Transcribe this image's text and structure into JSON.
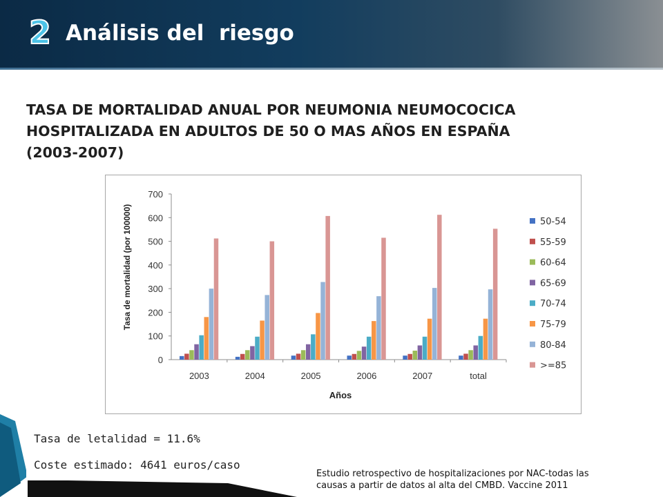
{
  "header": {
    "slide_number": "2",
    "title": "Análisis del  riesgo"
  },
  "main_title": {
    "lines": [
      "TASA DE MORTALIDAD ANUAL POR NEUMONIA NEUMOCOCICA",
      "HOSPITALIZADA EN ADULTOS DE 50 O MAS AÑOS EN ESPAÑA",
      "(2003-2007)"
    ]
  },
  "info_box": {
    "letalidad": "Tasa de letalidad = 11.6%",
    "coste": "Coste estimado: 4641 euros/caso"
  },
  "footnote": {
    "lines": [
      "Estudio retrospectivo de hospitalizaciones por NAC-todas las",
      "causas a partir de datos al alta del CMBD. Vaccine 2011"
    ]
  },
  "colors": {
    "header_bg": "#0b2a45",
    "slide_number": "#4cc3e8"
  },
  "chart_data": {
    "type": "bar",
    "title": "",
    "xlabel": "Años",
    "ylabel": "Tasa de mortalidad (por 100000)",
    "ylim": [
      0,
      700
    ],
    "yticks": [
      0,
      100,
      200,
      300,
      400,
      500,
      600,
      700
    ],
    "grid": false,
    "legend_position": "right",
    "categories": [
      "2003",
      "2004",
      "2005",
      "2006",
      "2007",
      "total"
    ],
    "series": [
      {
        "name": "50-54",
        "color": "#4472c4",
        "values": [
          15,
          12,
          17,
          17,
          17,
          17
        ]
      },
      {
        "name": "55-59",
        "color": "#c0504d",
        "values": [
          25,
          24,
          25,
          24,
          24,
          25
        ]
      },
      {
        "name": "60-64",
        "color": "#9bbb59",
        "values": [
          40,
          40,
          40,
          37,
          38,
          40
        ]
      },
      {
        "name": "65-69",
        "color": "#8064a2",
        "values": [
          65,
          57,
          65,
          55,
          60,
          60
        ]
      },
      {
        "name": "70-74",
        "color": "#4bacc6",
        "values": [
          103,
          97,
          107,
          97,
          97,
          100
        ]
      },
      {
        "name": "75-79",
        "color": "#f79646",
        "values": [
          180,
          165,
          197,
          163,
          173,
          173
        ]
      },
      {
        "name": "80-84",
        "color": "#95b3d7",
        "values": [
          300,
          273,
          328,
          268,
          303,
          297
        ]
      },
      {
        "name": ">=85",
        "color": "#d99694",
        "values": [
          512,
          500,
          607,
          515,
          612,
          553
        ]
      }
    ]
  }
}
